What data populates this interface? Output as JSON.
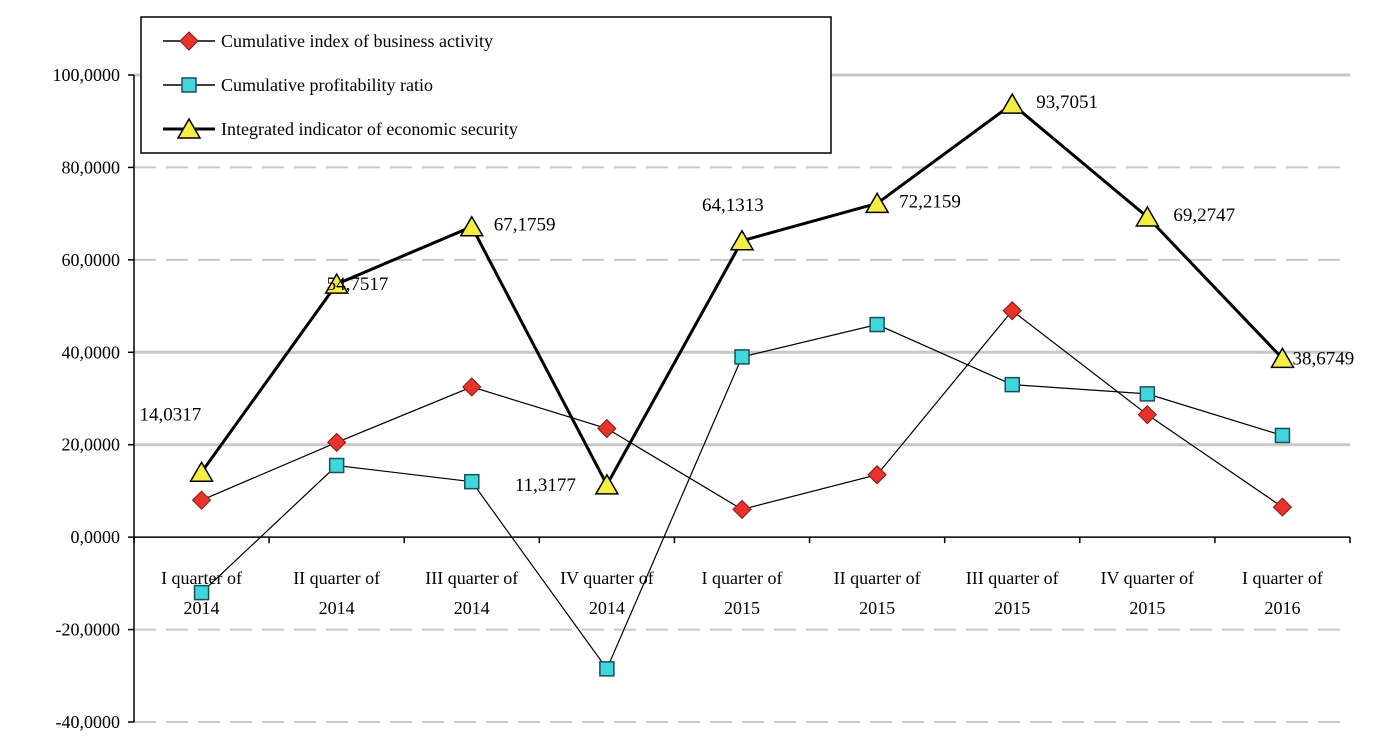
{
  "chart_data": {
    "type": "line",
    "title": "",
    "xlabel": "",
    "ylabel": "",
    "ylim": [
      -40,
      100
    ],
    "y_tick_step": 20,
    "y_tick_labels": [
      "-40,0000",
      "-20,0000",
      "0,0000",
      "20,0000",
      "40,0000",
      "60,0000",
      "80,0000",
      "100,0000"
    ],
    "grid": "horizontal dashed",
    "legend_position": "top-left",
    "categories": [
      [
        "I quarter of",
        "2014"
      ],
      [
        "II quarter of",
        "2014"
      ],
      [
        "III quarter of",
        "2014"
      ],
      [
        "IV quarter of",
        "2014"
      ],
      [
        "I quarter of",
        "2015"
      ],
      [
        "II quarter of",
        "2015"
      ],
      [
        "III quarter of",
        "2015"
      ],
      [
        "IV quarter of",
        "2015"
      ],
      [
        "I quarter of",
        "2016"
      ]
    ],
    "series": [
      {
        "name": "Cumulative index of business activity",
        "marker": "diamond",
        "marker_color": "#e8322a",
        "line_color": "#000000",
        "values": [
          8.0,
          20.5,
          32.5,
          23.5,
          6.0,
          13.5,
          49.0,
          26.5,
          6.5
        ]
      },
      {
        "name": "Cumulative profitability ratio",
        "marker": "square",
        "marker_color": "#3fd6dc",
        "line_color": "#000000",
        "values": [
          -12.0,
          15.5,
          12.0,
          -28.5,
          39.0,
          46.0,
          33.0,
          31.0,
          22.0
        ]
      },
      {
        "name": "Integrated indicator of economic security",
        "marker": "triangle",
        "marker_color": "#f3ef45",
        "line_color": "#000000",
        "values": [
          14.0317,
          54.7517,
          67.1759,
          11.3177,
          64.1313,
          72.2159,
          93.7051,
          69.2747,
          38.6749
        ],
        "data_labels": [
          "14,0317",
          "54,7517",
          "67,1759",
          "11,3177",
          "64,1313",
          "72,2159",
          "93,7051",
          "69,2747",
          "38,6749"
        ]
      }
    ]
  }
}
